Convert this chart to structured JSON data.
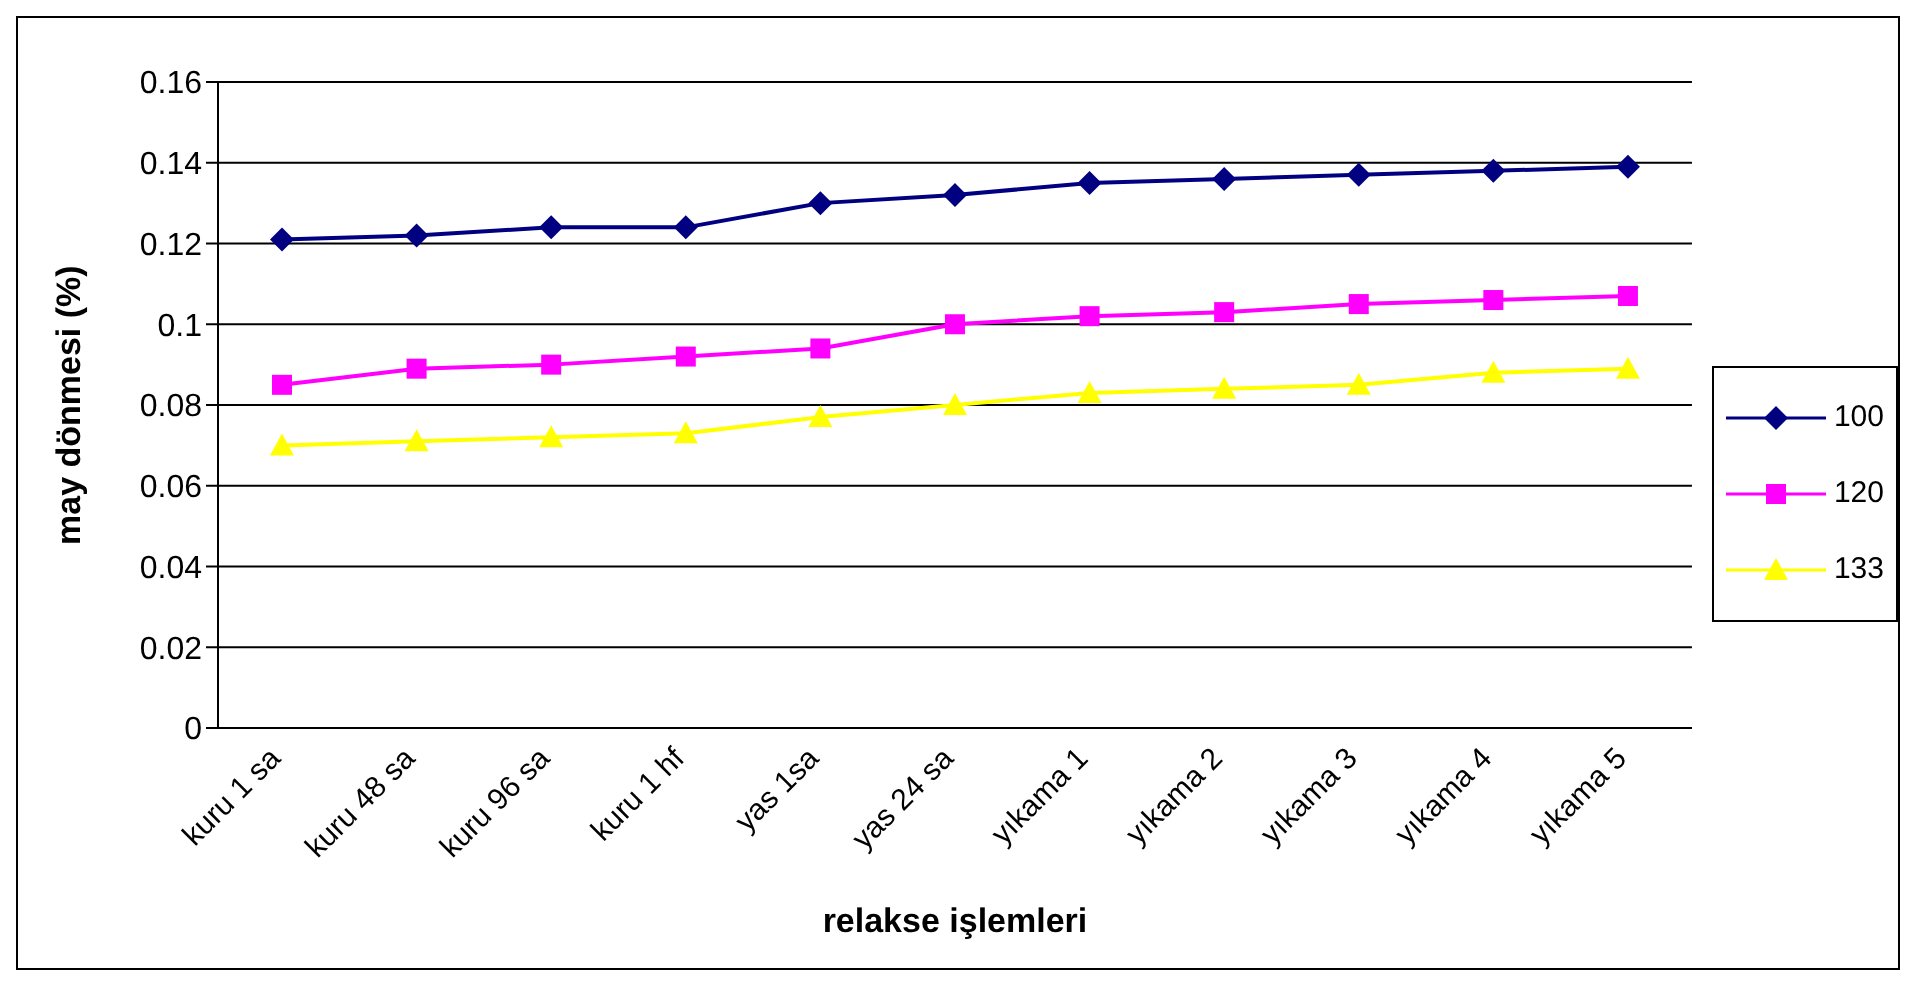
{
  "chart_data": {
    "type": "line",
    "xlabel": "relakse işlemleri",
    "ylabel": "may dönmesi (%)",
    "categories": [
      "kuru 1 sa",
      "kuru 48 sa",
      "kuru 96 sa",
      "kuru 1 hf",
      "yas 1sa",
      "yas 24 sa",
      "yıkama 1",
      "yıkama 2",
      "yıkama 3",
      "yıkama 4",
      "yıkama 5"
    ],
    "series": [
      {
        "name": "100",
        "color": "#000080",
        "marker": "diamond",
        "values": [
          0.121,
          0.122,
          0.124,
          0.124,
          0.13,
          0.132,
          0.135,
          0.136,
          0.137,
          0.138,
          0.139
        ]
      },
      {
        "name": "120",
        "color": "#ff00ff",
        "marker": "square",
        "values": [
          0.085,
          0.089,
          0.09,
          0.092,
          0.094,
          0.1,
          0.102,
          0.103,
          0.105,
          0.106,
          0.107
        ]
      },
      {
        "name": "133",
        "color": "#ffff00",
        "marker": "triangle",
        "values": [
          0.07,
          0.071,
          0.072,
          0.073,
          0.077,
          0.08,
          0.083,
          0.084,
          0.085,
          0.088,
          0.089
        ]
      }
    ],
    "ylim": [
      0,
      0.16
    ],
    "yticks": [
      0,
      0.02,
      0.04,
      0.06,
      0.08,
      0.1,
      0.12,
      0.14,
      0.16
    ],
    "grid": "y",
    "legend": "right"
  }
}
